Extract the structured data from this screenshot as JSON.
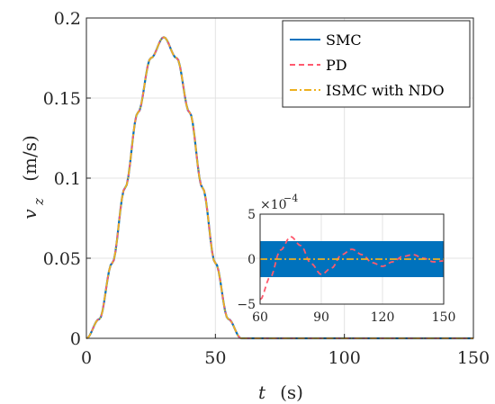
{
  "chart_data": [
    {
      "type": "line",
      "x_name": "t",
      "x_unit": "(s)",
      "y_name": "v",
      "y_sub": "z",
      "y_unit": "(m/s)",
      "xlim": [
        0,
        150
      ],
      "ylim": [
        0,
        0.2
      ],
      "xticks": [
        "0",
        "50",
        "100",
        "150"
      ],
      "yticks": [
        "0",
        "0.05",
        "0.1",
        "0.15",
        "0.2"
      ],
      "grid": true,
      "legend_position": "top-right",
      "x": [
        0,
        5,
        10,
        15,
        20,
        25,
        30,
        35,
        40,
        45,
        50,
        55,
        60,
        70,
        80,
        90,
        100,
        110,
        120,
        130,
        140,
        150
      ],
      "series": [
        {
          "name": "SMC",
          "color": "#0072BD",
          "style": "solid",
          "values": [
            0,
            0.012,
            0.047,
            0.094,
            0.141,
            0.175,
            0.188,
            0.175,
            0.141,
            0.094,
            0.047,
            0.012,
            0,
            0,
            0,
            0,
            0,
            0,
            0,
            0,
            0,
            0
          ]
        },
        {
          "name": "PD",
          "color": "#FF5A6E",
          "style": "dashed",
          "values": [
            0,
            0.012,
            0.047,
            0.094,
            0.141,
            0.175,
            0.188,
            0.175,
            0.141,
            0.094,
            0.047,
            0.012,
            0,
            0,
            0,
            0,
            0,
            0,
            0,
            0,
            0,
            0
          ]
        },
        {
          "name": "ISMC with NDO",
          "color": "#EDB120",
          "style": "dashdot",
          "values": [
            0,
            0.012,
            0.047,
            0.094,
            0.141,
            0.175,
            0.188,
            0.175,
            0.141,
            0.094,
            0.047,
            0.012,
            0,
            0,
            0,
            0,
            0,
            0,
            0,
            0,
            0,
            0
          ]
        }
      ]
    },
    {
      "type": "line",
      "role": "inset",
      "xlim": [
        60,
        150
      ],
      "ylim": [
        -5,
        5
      ],
      "scale_label_base": "×10",
      "scale_label_exp": "−4",
      "xticks": [
        "60",
        "90",
        "120",
        "150"
      ],
      "yticks": [
        "5",
        "0",
        "−5"
      ],
      "grid": true,
      "smc_band": [
        -2,
        2
      ],
      "series": [
        {
          "name": "SMC",
          "color": "#0072BD",
          "style": "band"
        },
        {
          "name": "PD",
          "color": "#FF5A6E",
          "style": "dashed",
          "x": [
            60,
            65,
            70,
            75,
            80,
            85,
            90,
            95,
            100,
            105,
            110,
            115,
            120,
            125,
            130,
            135,
            140,
            145,
            150
          ],
          "values": [
            -4.5,
            -2.0,
            1.0,
            2.5,
            1.5,
            -0.5,
            -1.7,
            -1.0,
            0.5,
            1.1,
            0.5,
            -0.4,
            -0.8,
            -0.3,
            0.3,
            0.5,
            0.1,
            -0.3,
            -0.2
          ]
        },
        {
          "name": "ISMC with NDO",
          "color": "#EDB120",
          "style": "dashdot",
          "x": [
            60,
            150
          ],
          "values": [
            0,
            0
          ]
        }
      ]
    }
  ]
}
